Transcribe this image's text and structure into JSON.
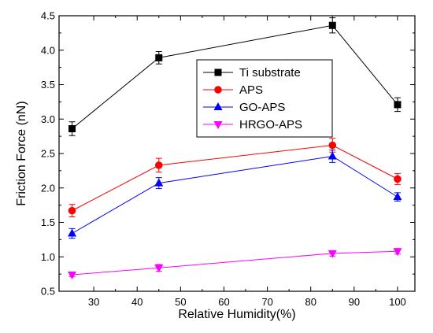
{
  "chart_data": {
    "type": "line",
    "xlabel": "Relative Humidity(%)",
    "ylabel": "Friction Force (nN)",
    "xlim": [
      22,
      104
    ],
    "ylim": [
      0.5,
      4.5
    ],
    "x_ticks": [
      30,
      40,
      50,
      60,
      70,
      80,
      90,
      100
    ],
    "x_tick_labels": [
      "30",
      "40",
      "50",
      "60",
      "70",
      "80",
      "90",
      "100"
    ],
    "y_ticks": [
      0.5,
      1.0,
      1.5,
      2.0,
      2.5,
      3.0,
      3.5,
      4.0,
      4.5
    ],
    "y_tick_labels": [
      "0.5",
      "1.0",
      "1.5",
      "2.0",
      "2.5",
      "3.0",
      "3.5",
      "4.0",
      "4.5"
    ],
    "legend_position": "upper-right",
    "grid": false,
    "x": [
      25,
      45,
      85,
      100
    ],
    "series": [
      {
        "name": "Ti substrate",
        "values": [
          2.86,
          3.89,
          4.36,
          3.21
        ],
        "errors": [
          0.1,
          0.09,
          0.11,
          0.1
        ],
        "color": "#000000",
        "marker": "square"
      },
      {
        "name": "APS",
        "values": [
          1.67,
          2.33,
          2.62,
          2.13
        ],
        "errors": [
          0.09,
          0.1,
          0.1,
          0.08
        ],
        "color": "#ff0000",
        "marker": "circle"
      },
      {
        "name": "GO-APS",
        "values": [
          1.34,
          2.07,
          2.46,
          1.87
        ],
        "errors": [
          0.07,
          0.08,
          0.09,
          0.06
        ],
        "color": "#0000ff",
        "marker": "triangle-up"
      },
      {
        "name": "HRGO-APS",
        "values": [
          0.74,
          0.84,
          1.05,
          1.08
        ],
        "errors": [
          0.03,
          0.05,
          0.04,
          0.04
        ],
        "color": "#ff00ff",
        "marker": "triangle-down"
      }
    ]
  }
}
